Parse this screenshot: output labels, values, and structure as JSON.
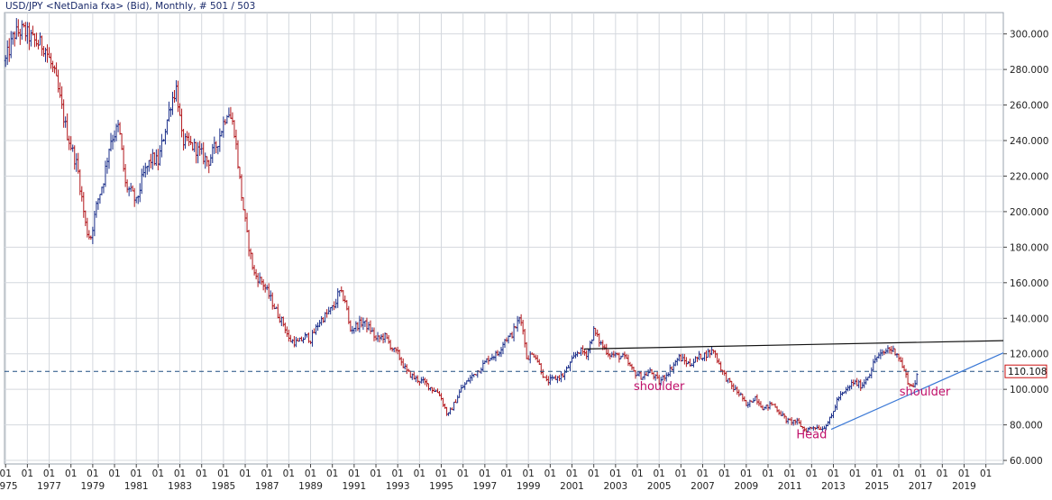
{
  "header_text": "USD/JPY <NetDania fxa> (Bid), Monthly, # 501 / 503",
  "colors": {
    "background": "#ffffff",
    "grid": "#d4d8de",
    "up_bar": "#1a2e8a",
    "down_bar": "#b2171c",
    "current_line": "#1f4d80",
    "current_box_border": "#cc1111",
    "resistance_line": "#111111",
    "support_line": "#3a78d6",
    "annotation": "#c0106a",
    "axis_text": "#222222"
  },
  "chart_data": {
    "type": "ohlc",
    "series_name": "USD/JPY",
    "timeframe": "Monthly",
    "x_range": [
      1974.95,
      2020.8
    ],
    "y_range": [
      58,
      312
    ],
    "grid": true,
    "y_ticks": [
      "300.000",
      "280.000",
      "260.000",
      "240.000",
      "220.000",
      "200.000",
      "180.000",
      "160.000",
      "140.000",
      "120.000",
      "100.000",
      "80.000",
      "60.000"
    ],
    "x_tick_month_label": "01",
    "x_ticks_years": [
      1975,
      1976,
      1977,
      1978,
      1979,
      1980,
      1981,
      1982,
      1983,
      1984,
      1985,
      1986,
      1987,
      1988,
      1989,
      1990,
      1991,
      1992,
      1993,
      1994,
      1995,
      1996,
      1997,
      1998,
      1999,
      2000,
      2001,
      2002,
      2003,
      2004,
      2005,
      2006,
      2007,
      2008,
      2009,
      2010,
      2011,
      2012,
      2013,
      2014,
      2015,
      2016,
      2017,
      2018,
      2019,
      2020
    ],
    "x_year_labels": [
      "1975",
      "1977",
      "1979",
      "1981",
      "1983",
      "1985",
      "1987",
      "1989",
      "1991",
      "1993",
      "1995",
      "1997",
      "1999",
      "2001",
      "2003",
      "2005",
      "2007",
      "2009",
      "2011",
      "2013",
      "2015",
      "2017",
      "2019"
    ],
    "current_value": 110.108,
    "current_value_label": "110.108",
    "close_anchors": [
      [
        1975.0,
        285
      ],
      [
        1975.4,
        300
      ],
      [
        1975.8,
        302
      ],
      [
        1976.3,
        296
      ],
      [
        1976.8,
        293
      ],
      [
        1977.3,
        275
      ],
      [
        1977.8,
        245
      ],
      [
        1978.3,
        225
      ],
      [
        1978.7,
        190
      ],
      [
        1978.9,
        185
      ],
      [
        1979.2,
        205
      ],
      [
        1979.5,
        218
      ],
      [
        1979.8,
        240
      ],
      [
        1980.2,
        248
      ],
      [
        1980.5,
        215
      ],
      [
        1980.8,
        210
      ],
      [
        1981.0,
        205
      ],
      [
        1981.3,
        220
      ],
      [
        1981.7,
        230
      ],
      [
        1982.0,
        228
      ],
      [
        1982.3,
        245
      ],
      [
        1982.6,
        262
      ],
      [
        1982.85,
        270
      ],
      [
        1983.1,
        240
      ],
      [
        1983.4,
        238
      ],
      [
        1983.7,
        236
      ],
      [
        1984.0,
        232
      ],
      [
        1984.3,
        228
      ],
      [
        1984.7,
        238
      ],
      [
        1985.0,
        250
      ],
      [
        1985.2,
        258
      ],
      [
        1985.5,
        246
      ],
      [
        1985.8,
        212
      ],
      [
        1986.1,
        185
      ],
      [
        1986.4,
        165
      ],
      [
        1986.8,
        160
      ],
      [
        1987.2,
        150
      ],
      [
        1987.5,
        142
      ],
      [
        1987.8,
        136
      ],
      [
        1988.0,
        128
      ],
      [
        1988.4,
        126
      ],
      [
        1988.8,
        130
      ],
      [
        1989.0,
        128
      ],
      [
        1989.4,
        138
      ],
      [
        1989.8,
        143
      ],
      [
        1990.1,
        147
      ],
      [
        1990.3,
        155
      ],
      [
        1990.6,
        150
      ],
      [
        1990.8,
        133
      ],
      [
        1991.0,
        135
      ],
      [
        1991.4,
        138
      ],
      [
        1991.8,
        133
      ],
      [
        1992.0,
        128
      ],
      [
        1992.4,
        130
      ],
      [
        1992.8,
        122
      ],
      [
        1993.0,
        120
      ],
      [
        1993.4,
        110
      ],
      [
        1993.8,
        106
      ],
      [
        1994.2,
        104
      ],
      [
        1994.6,
        100
      ],
      [
        1994.9,
        98
      ],
      [
        1995.3,
        85
      ],
      [
        1995.6,
        92
      ],
      [
        1995.9,
        100
      ],
      [
        1996.3,
        106
      ],
      [
        1996.8,
        112
      ],
      [
        1997.2,
        118
      ],
      [
        1997.6,
        120
      ],
      [
        1997.9,
        128
      ],
      [
        1998.2,
        130
      ],
      [
        1998.6,
        140
      ],
      [
        1998.75,
        135
      ],
      [
        1998.9,
        118
      ],
      [
        1999.3,
        120
      ],
      [
        1999.8,
        104
      ],
      [
        2000.2,
        106
      ],
      [
        2000.6,
        108
      ],
      [
        2000.9,
        114
      ],
      [
        2001.3,
        122
      ],
      [
        2001.7,
        120
      ],
      [
        2002.0,
        133
      ],
      [
        2002.3,
        126
      ],
      [
        2002.7,
        120
      ],
      [
        2003.0,
        119
      ],
      [
        2003.4,
        118
      ],
      [
        2003.8,
        110
      ],
      [
        2004.2,
        107
      ],
      [
        2004.6,
        110
      ],
      [
        2005.0,
        104
      ],
      [
        2005.5,
        111
      ],
      [
        2005.9,
        118
      ],
      [
        2006.4,
        114
      ],
      [
        2006.8,
        118
      ],
      [
        2007.2,
        120
      ],
      [
        2007.5,
        122
      ],
      [
        2007.9,
        110
      ],
      [
        2008.3,
        102
      ],
      [
        2008.8,
        96
      ],
      [
        2009.0,
        90
      ],
      [
        2009.4,
        96
      ],
      [
        2009.8,
        89
      ],
      [
        2010.2,
        92
      ],
      [
        2010.6,
        86
      ],
      [
        2010.9,
        82
      ],
      [
        2011.3,
        82
      ],
      [
        2011.7,
        77
      ],
      [
        2012.1,
        79
      ],
      [
        2012.5,
        78
      ],
      [
        2012.9,
        84
      ],
      [
        2013.2,
        95
      ],
      [
        2013.5,
        98
      ],
      [
        2013.9,
        104
      ],
      [
        2014.3,
        102
      ],
      [
        2014.7,
        110
      ],
      [
        2014.95,
        118
      ],
      [
        2015.3,
        120
      ],
      [
        2015.5,
        123
      ],
      [
        2015.9,
        121
      ],
      [
        2016.2,
        112
      ],
      [
        2016.5,
        102
      ],
      [
        2016.75,
        103
      ],
      [
        2016.9,
        110
      ]
    ],
    "trendlines": [
      {
        "name": "resistance",
        "from": [
          2001.55,
          122.7
        ],
        "to": [
          2020.8,
          127.4
        ]
      },
      {
        "name": "support",
        "from": [
          2012.9,
          77.5
        ],
        "to": [
          2020.8,
          120.5
        ]
      }
    ],
    "annotations": [
      {
        "text": "shoulder",
        "at": [
          2005.0,
          99.5
        ]
      },
      {
        "text": "Head",
        "at": [
          2012.0,
          72.5
        ]
      },
      {
        "text": "shoulder",
        "at": [
          2017.2,
          96.5
        ]
      }
    ]
  }
}
